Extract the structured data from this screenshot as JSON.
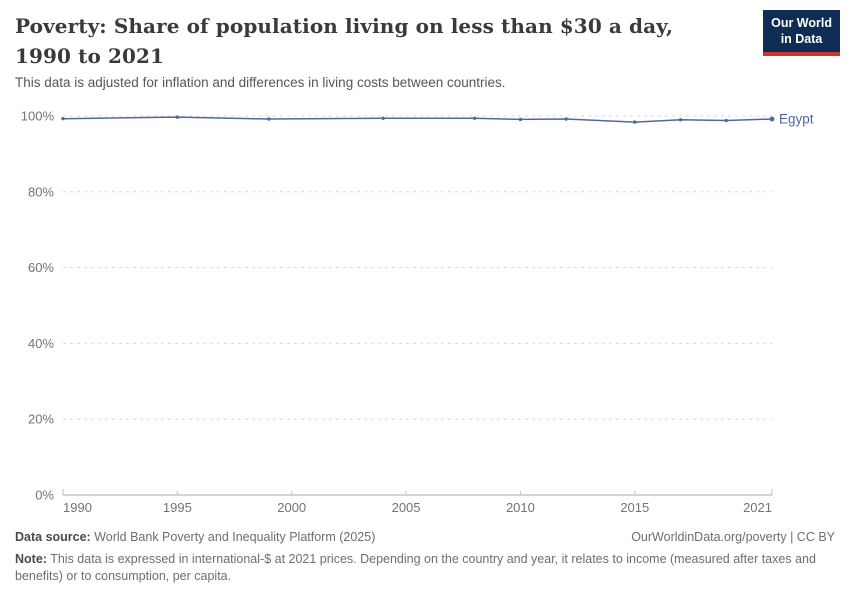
{
  "header": {
    "title": "Poverty: Share of population living on less than $30 a day, 1990 to 2021",
    "subtitle": "This data is adjusted for inflation and differences in living costs between countries.",
    "logo": {
      "line1": "Our World",
      "line2": "in Data"
    }
  },
  "colors": {
    "line_accent": "#4c6a9c",
    "logo_bg": "#0e2c54",
    "logo_accent": "#cf3428",
    "grid": "#d9d9d9",
    "axis": "#a8a8a8",
    "tick_text": "#737373"
  },
  "chart_data": {
    "type": "line",
    "title": "Poverty: Share of population living on less than $30 a day, 1990 to 2021",
    "x": [
      1990,
      1995,
      1999,
      2004,
      2008,
      2010,
      2012,
      2015,
      2017,
      2019,
      2021
    ],
    "series": [
      {
        "name": "Egypt",
        "color": "#4c6a9c",
        "values": [
          99.3,
          99.7,
          99.2,
          99.4,
          99.4,
          99.1,
          99.2,
          98.4,
          99.0,
          98.8,
          99.2
        ]
      }
    ],
    "xlim": [
      1990,
      2021
    ],
    "ylim": [
      0,
      100
    ],
    "xticks": [
      1990,
      1995,
      2000,
      2005,
      2010,
      2015,
      2021
    ],
    "yticks": [
      0,
      20,
      40,
      60,
      80,
      100
    ],
    "ytick_suffix": "%",
    "xlabel": "",
    "ylabel": "",
    "grid": "dashed-horizontal",
    "legend_position": "end-of-line"
  },
  "footer": {
    "datasource_label": "Data source:",
    "datasource_text": " World Bank Poverty and Inequality Platform (2025)",
    "attribution": "OurWorldinData.org/poverty | CC BY",
    "note_label": "Note:",
    "note_text": " This data is expressed in international-$ at 2021 prices. Depending on the country and year, it relates to income (measured after taxes and benefits) or to consumption, per capita."
  }
}
